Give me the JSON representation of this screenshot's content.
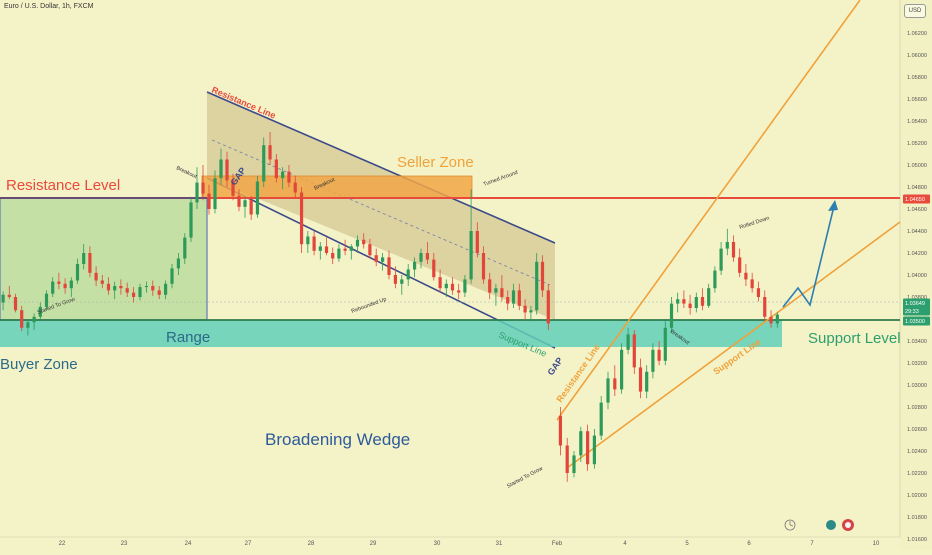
{
  "header": {
    "symbol_line": "Euro / U.S. Dollar, 1h, FXCM",
    "currency_badge": "USD"
  },
  "chart_data": {
    "type": "candlestick",
    "title": "Euro / U.S. Dollar, 1h, FXCM",
    "y_axis": {
      "min": 1.015,
      "max": 1.065,
      "ticks": [
        1.062,
        1.06,
        1.058,
        1.056,
        1.054,
        1.052,
        1.05,
        1.048,
        1.046,
        1.044,
        1.042,
        1.04,
        1.038,
        1.036,
        1.034,
        1.032,
        1.03,
        1.028,
        1.026,
        1.024,
        1.022,
        1.02,
        1.018,
        1.016
      ],
      "price_tags": [
        {
          "label": "1.04650",
          "value": 1.0465,
          "color": "#e84a3c"
        },
        {
          "label": "1.03649",
          "value": 1.03649,
          "color": "#2d9f6e"
        },
        {
          "label": "29:33",
          "value": 1.0359,
          "color": "#2d9f6e"
        },
        {
          "label": "1.03500",
          "value": 1.035,
          "color": "#2d9f6e"
        }
      ]
    },
    "x_axis": {
      "min": 0,
      "max": 23.6,
      "ticks": [
        {
          "label": "22",
          "x": 1
        },
        {
          "label": "23",
          "x": 2
        },
        {
          "label": "24",
          "x": 3
        },
        {
          "label": "27",
          "x": 4
        },
        {
          "label": "28",
          "x": 5
        },
        {
          "label": "29",
          "x": 6
        },
        {
          "label": "30",
          "x": 7
        },
        {
          "label": "31",
          "x": 8
        },
        {
          "label": "Feb",
          "x": 9
        },
        {
          "label": "4",
          "x": 10
        },
        {
          "label": "5",
          "x": 11
        },
        {
          "label": "6",
          "x": 12
        },
        {
          "label": "7",
          "x": 13
        },
        {
          "label": "10",
          "x": 14
        }
      ]
    },
    "candles": [
      [
        0.05,
        1.0375,
        1.0385,
        1.0368,
        1.0382
      ],
      [
        0.15,
        1.0382,
        1.039,
        1.0378,
        1.038
      ],
      [
        0.25,
        1.038,
        1.0383,
        1.0366,
        1.0368
      ],
      [
        0.35,
        1.0368,
        1.0372,
        1.0349,
        1.0352
      ],
      [
        0.45,
        1.0352,
        1.036,
        1.0345,
        1.0357
      ],
      [
        0.55,
        1.0357,
        1.0365,
        1.035,
        1.0362
      ],
      [
        0.65,
        1.0362,
        1.0375,
        1.0358,
        1.0371
      ],
      [
        0.75,
        1.0371,
        1.0386,
        1.0368,
        1.0383
      ],
      [
        0.85,
        1.0383,
        1.0398,
        1.038,
        1.0394
      ],
      [
        0.95,
        1.0394,
        1.0402,
        1.0387,
        1.0392
      ],
      [
        1.05,
        1.0392,
        1.0397,
        1.0383,
        1.0388
      ],
      [
        1.15,
        1.0388,
        1.0398,
        1.038,
        1.0395
      ],
      [
        1.25,
        1.0395,
        1.0415,
        1.0392,
        1.041
      ],
      [
        1.35,
        1.041,
        1.0428,
        1.0405,
        1.042
      ],
      [
        1.45,
        1.042,
        1.0426,
        1.0398,
        1.0402
      ],
      [
        1.55,
        1.0402,
        1.0408,
        1.039,
        1.0395
      ],
      [
        1.65,
        1.0395,
        1.04,
        1.0388,
        1.0392
      ],
      [
        1.75,
        1.0392,
        1.0398,
        1.0382,
        1.0386
      ],
      [
        1.85,
        1.0386,
        1.0394,
        1.0378,
        1.039
      ],
      [
        1.95,
        1.039,
        1.0396,
        1.0382,
        1.0388
      ],
      [
        2.05,
        1.0388,
        1.0393,
        1.038,
        1.0384
      ],
      [
        2.15,
        1.0384,
        1.0389,
        1.0375,
        1.038
      ],
      [
        2.25,
        1.038,
        1.0392,
        1.0377,
        1.0389
      ],
      [
        2.35,
        1.0389,
        1.0394,
        1.0384,
        1.039
      ],
      [
        2.45,
        1.039,
        1.0395,
        1.0381,
        1.0386
      ],
      [
        2.55,
        1.0386,
        1.039,
        1.0378,
        1.0382
      ],
      [
        2.65,
        1.0382,
        1.0395,
        1.0378,
        1.0392
      ],
      [
        2.75,
        1.0392,
        1.041,
        1.0388,
        1.0406
      ],
      [
        2.85,
        1.0406,
        1.042,
        1.04,
        1.0415
      ],
      [
        2.95,
        1.0415,
        1.0438,
        1.041,
        1.0434
      ],
      [
        3.05,
        1.0434,
        1.047,
        1.043,
        1.0466
      ],
      [
        3.15,
        1.0466,
        1.0498,
        1.046,
        1.0484
      ],
      [
        3.25,
        1.0484,
        1.05,
        1.0468,
        1.0474
      ],
      [
        3.35,
        1.0474,
        1.0482,
        1.0455,
        1.046
      ],
      [
        3.45,
        1.046,
        1.0495,
        1.0456,
        1.0488
      ],
      [
        3.55,
        1.0488,
        1.0515,
        1.0482,
        1.0505
      ],
      [
        3.65,
        1.0505,
        1.0512,
        1.048,
        1.0486
      ],
      [
        3.75,
        1.0486,
        1.0492,
        1.0468,
        1.0472
      ],
      [
        3.85,
        1.0472,
        1.0478,
        1.0458,
        1.0462
      ],
      [
        3.95,
        1.0462,
        1.047,
        1.0452,
        1.0468
      ],
      [
        4.05,
        1.0468,
        1.0472,
        1.045,
        1.0455
      ],
      [
        4.15,
        1.0455,
        1.049,
        1.0452,
        1.0485
      ],
      [
        4.25,
        1.0485,
        1.0525,
        1.048,
        1.0518
      ],
      [
        4.35,
        1.0518,
        1.053,
        1.05,
        1.0505
      ],
      [
        4.45,
        1.0505,
        1.051,
        1.0484,
        1.0488
      ],
      [
        4.55,
        1.0488,
        1.0498,
        1.0478,
        1.0494
      ],
      [
        4.65,
        1.0494,
        1.05,
        1.048,
        1.0484
      ],
      [
        4.75,
        1.0484,
        1.049,
        1.047,
        1.0475
      ],
      [
        4.85,
        1.0475,
        1.048,
        1.042,
        1.0428
      ],
      [
        4.95,
        1.0428,
        1.044,
        1.042,
        1.0435
      ],
      [
        5.05,
        1.0435,
        1.044,
        1.0418,
        1.0422
      ],
      [
        5.15,
        1.0422,
        1.043,
        1.0414,
        1.0426
      ],
      [
        5.25,
        1.0426,
        1.0434,
        1.0418,
        1.042
      ],
      [
        5.35,
        1.042,
        1.0425,
        1.041,
        1.0415
      ],
      [
        5.45,
        1.0415,
        1.0428,
        1.0412,
        1.0424
      ],
      [
        5.55,
        1.0424,
        1.0432,
        1.0418,
        1.0422
      ],
      [
        5.65,
        1.0422,
        1.0428,
        1.0414,
        1.0426
      ],
      [
        5.75,
        1.0426,
        1.0436,
        1.042,
        1.0432
      ],
      [
        5.85,
        1.0432,
        1.0438,
        1.0424,
        1.0428
      ],
      [
        5.95,
        1.0428,
        1.0433,
        1.0415,
        1.0418
      ],
      [
        6.05,
        1.0418,
        1.0424,
        1.0408,
        1.0412
      ],
      [
        6.15,
        1.0412,
        1.042,
        1.0404,
        1.0416
      ],
      [
        6.25,
        1.0416,
        1.0422,
        1.0396,
        1.04
      ],
      [
        6.35,
        1.04,
        1.0408,
        1.0388,
        1.0392
      ],
      [
        6.45,
        1.0392,
        1.04,
        1.0382,
        1.0396
      ],
      [
        6.55,
        1.0396,
        1.041,
        1.039,
        1.0405
      ],
      [
        6.65,
        1.0405,
        1.0416,
        1.0398,
        1.0412
      ],
      [
        6.75,
        1.0412,
        1.0424,
        1.0406,
        1.042
      ],
      [
        6.85,
        1.042,
        1.043,
        1.041,
        1.0414
      ],
      [
        6.95,
        1.0414,
        1.042,
        1.0395,
        1.0398
      ],
      [
        7.05,
        1.0398,
        1.0405,
        1.0384,
        1.0388
      ],
      [
        7.15,
        1.0388,
        1.0396,
        1.038,
        1.0392
      ],
      [
        7.25,
        1.0392,
        1.0398,
        1.0382,
        1.0386
      ],
      [
        7.35,
        1.0386,
        1.0392,
        1.0378,
        1.0384
      ],
      [
        7.45,
        1.0384,
        1.04,
        1.038,
        1.0396
      ],
      [
        7.55,
        1.0396,
        1.0478,
        1.0392,
        1.044
      ],
      [
        7.65,
        1.044,
        1.0448,
        1.0416,
        1.042
      ],
      [
        7.75,
        1.042,
        1.0426,
        1.0392,
        1.0396
      ],
      [
        7.85,
        1.0396,
        1.0402,
        1.0378,
        1.0384
      ],
      [
        7.95,
        1.0384,
        1.0392,
        1.0372,
        1.0388
      ],
      [
        8.05,
        1.0388,
        1.04,
        1.0376,
        1.038
      ],
      [
        8.15,
        1.038,
        1.0386,
        1.0368,
        1.0374
      ],
      [
        8.25,
        1.0374,
        1.0392,
        1.037,
        1.0386
      ],
      [
        8.35,
        1.0386,
        1.0392,
        1.0368,
        1.0372
      ],
      [
        8.45,
        1.0372,
        1.0378,
        1.036,
        1.0366
      ],
      [
        8.55,
        1.0366,
        1.0372,
        1.0358,
        1.0368
      ],
      [
        8.65,
        1.0368,
        1.042,
        1.0364,
        1.0412
      ],
      [
        8.75,
        1.0412,
        1.0418,
        1.038,
        1.0386
      ],
      [
        8.85,
        1.0386,
        1.0392,
        1.035,
        1.0356
      ],
      [
        9.05,
        1.0272,
        1.028,
        1.0236,
        1.0245
      ],
      [
        9.15,
        1.0245,
        1.0252,
        1.0212,
        1.022
      ],
      [
        9.25,
        1.022,
        1.024,
        1.0216,
        1.0236
      ],
      [
        9.35,
        1.0236,
        1.0262,
        1.023,
        1.0258
      ],
      [
        9.45,
        1.0258,
        1.0264,
        1.0222,
        1.0228
      ],
      [
        9.55,
        1.0228,
        1.026,
        1.0224,
        1.0254
      ],
      [
        9.65,
        1.0254,
        1.029,
        1.025,
        1.0284
      ],
      [
        9.75,
        1.0284,
        1.0312,
        1.0278,
        1.0306
      ],
      [
        9.85,
        1.0306,
        1.0318,
        1.029,
        1.0296
      ],
      [
        9.95,
        1.0296,
        1.0338,
        1.0292,
        1.0332
      ],
      [
        10.05,
        1.0332,
        1.0352,
        1.0328,
        1.0346
      ],
      [
        10.15,
        1.0346,
        1.035,
        1.031,
        1.0316
      ],
      [
        10.25,
        1.0316,
        1.0324,
        1.0288,
        1.0294
      ],
      [
        10.35,
        1.0294,
        1.0318,
        1.0288,
        1.0312
      ],
      [
        10.45,
        1.0312,
        1.0338,
        1.0306,
        1.0332
      ],
      [
        10.55,
        1.0332,
        1.034,
        1.0318,
        1.0322
      ],
      [
        10.65,
        1.0322,
        1.0358,
        1.0318,
        1.0352
      ],
      [
        10.75,
        1.0352,
        1.038,
        1.0348,
        1.0374
      ],
      [
        10.85,
        1.0374,
        1.0384,
        1.0366,
        1.0378
      ],
      [
        10.95,
        1.0378,
        1.0386,
        1.037,
        1.0374
      ],
      [
        11.05,
        1.0374,
        1.0382,
        1.0364,
        1.037
      ],
      [
        11.15,
        1.037,
        1.0384,
        1.0366,
        1.038
      ],
      [
        11.25,
        1.038,
        1.0388,
        1.0368,
        1.0372
      ],
      [
        11.35,
        1.0372,
        1.0392,
        1.037,
        1.0388
      ],
      [
        11.45,
        1.0388,
        1.0408,
        1.0384,
        1.0404
      ],
      [
        11.55,
        1.0404,
        1.043,
        1.04,
        1.0424
      ],
      [
        11.65,
        1.0424,
        1.0442,
        1.0418,
        1.043
      ],
      [
        11.75,
        1.043,
        1.0436,
        1.0412,
        1.0416
      ],
      [
        11.85,
        1.0416,
        1.0424,
        1.0398,
        1.0402
      ],
      [
        11.95,
        1.0402,
        1.041,
        1.039,
        1.0396
      ],
      [
        12.05,
        1.0396,
        1.0402,
        1.0384,
        1.0388
      ],
      [
        12.15,
        1.0388,
        1.0394,
        1.0376,
        1.038
      ],
      [
        12.25,
        1.038,
        1.0386,
        1.0358,
        1.0362
      ],
      [
        12.35,
        1.0362,
        1.0368,
        1.0352,
        1.0356
      ],
      [
        12.45,
        1.0356,
        1.0366,
        1.0352,
        1.0364
      ]
    ],
    "lines": [
      {
        "label": "Resistance Level",
        "value": 1.0465,
        "color": "#e84a3c"
      },
      {
        "label": "Support Level",
        "value": 1.035,
        "color": "#2d9f6e"
      }
    ],
    "annotations": [
      "Euro / U.S. Dollar, 1h, FXCM",
      "Resistance Level",
      "Resistance Line",
      "Seller Zone",
      "Breakout",
      "GAP",
      "Breakout",
      "Turned Around",
      "Range",
      "Buyer Zone",
      "Started To Grow",
      "Rebounded Up",
      "Support Line",
      "GAP",
      "Broadening Wedge",
      "Resistance Line",
      "Breakout",
      "Rolled Down",
      "Support Line",
      "Support Level",
      "Started To Grow"
    ]
  }
}
